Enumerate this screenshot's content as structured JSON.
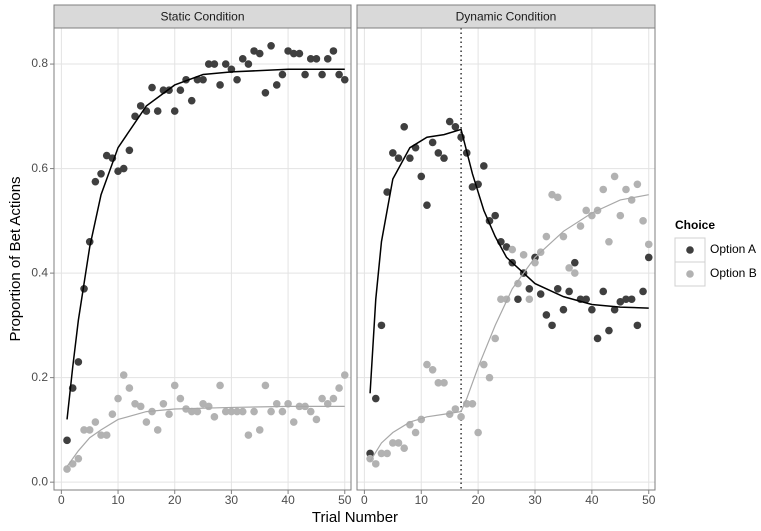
{
  "xlabel": "Trial Number",
  "ylabel": "Proportion of Bet Actions",
  "legend": {
    "title": "Choice",
    "position": "right"
  },
  "chart_data": [
    {
      "type": "scatter",
      "title": "Static Condition",
      "grid": true,
      "x": [
        1,
        2,
        3,
        4,
        5,
        6,
        7,
        8,
        9,
        10,
        11,
        12,
        13,
        14,
        15,
        16,
        17,
        18,
        19,
        20,
        21,
        22,
        23,
        24,
        25,
        26,
        27,
        28,
        29,
        30,
        31,
        32,
        33,
        34,
        35,
        36,
        37,
        38,
        39,
        40,
        41,
        42,
        43,
        44,
        45,
        46,
        47,
        48,
        49,
        50
      ],
      "xlim": [
        -1.3,
        51.1
      ],
      "xticks": [
        0,
        10,
        20,
        30,
        40,
        50
      ],
      "ylim": [
        -0.015,
        0.869
      ],
      "yticks": [
        {
          "value": 0,
          "label": "0.0"
        },
        {
          "value": 0.2,
          "label": "0.2"
        },
        {
          "value": 0.4,
          "label": "0.4"
        },
        {
          "value": 0.6,
          "label": "0.6"
        },
        {
          "value": 0.8,
          "label": "0.8"
        }
      ],
      "series": [
        {
          "name": "Option A",
          "color": "#3f3f3f",
          "fit_color": "#000000",
          "values": [
            0.08,
            0.18,
            0.23,
            0.37,
            0.46,
            0.575,
            0.59,
            0.625,
            0.62,
            0.595,
            0.6,
            0.635,
            0.7,
            0.72,
            0.71,
            0.755,
            0.71,
            0.75,
            0.75,
            0.71,
            0.75,
            0.77,
            0.73,
            0.77,
            0.77,
            0.8,
            0.8,
            0.76,
            0.8,
            0.79,
            0.77,
            0.81,
            0.8,
            0.825,
            0.82,
            0.745,
            0.835,
            0.76,
            0.78,
            0.825,
            0.82,
            0.82,
            0.78,
            0.81,
            0.81,
            0.78,
            0.81,
            0.825,
            0.78,
            0.77
          ],
          "fit": {
            "x": [
              1,
              2,
              3,
              5,
              7,
              10,
              15,
              20,
              25,
              30,
              40,
              50
            ],
            "values": [
              0.12,
              0.22,
              0.31,
              0.45,
              0.55,
              0.64,
              0.72,
              0.76,
              0.78,
              0.785,
              0.79,
              0.79
            ]
          }
        },
        {
          "name": "Option B",
          "color": "#b2b2b2",
          "fit_color": "#a8a8a8",
          "values": [
            0.025,
            0.035,
            0.045,
            0.1,
            0.1,
            0.115,
            0.09,
            0.09,
            0.13,
            0.16,
            0.205,
            0.18,
            0.15,
            0.145,
            0.115,
            0.135,
            0.1,
            0.15,
            0.13,
            0.185,
            0.16,
            0.14,
            0.135,
            0.135,
            0.15,
            0.145,
            0.125,
            0.185,
            0.135,
            0.135,
            0.135,
            0.135,
            0.09,
            0.135,
            0.1,
            0.185,
            0.135,
            0.15,
            0.135,
            0.15,
            0.115,
            0.145,
            0.145,
            0.135,
            0.12,
            0.16,
            0.15,
            0.16,
            0.18,
            0.205
          ],
          "fit": {
            "x": [
              1,
              3,
              5,
              7,
              10,
              15,
              20,
              30,
              40,
              50
            ],
            "values": [
              0.03,
              0.06,
              0.085,
              0.1,
              0.12,
              0.135,
              0.14,
              0.143,
              0.145,
              0.145
            ]
          }
        }
      ]
    },
    {
      "type": "scatter",
      "title": "Dynamic Condition",
      "grid": true,
      "vline": 17,
      "x": [
        1,
        2,
        3,
        4,
        5,
        6,
        7,
        8,
        9,
        10,
        11,
        12,
        13,
        14,
        15,
        16,
        17,
        18,
        19,
        20,
        21,
        22,
        23,
        24,
        25,
        26,
        27,
        28,
        29,
        30,
        31,
        32,
        33,
        34,
        35,
        36,
        37,
        38,
        39,
        40,
        41,
        42,
        43,
        44,
        45,
        46,
        47,
        48,
        49,
        50
      ],
      "xlim": [
        -1.3,
        51.1
      ],
      "xticks": [
        0,
        10,
        20,
        30,
        40,
        50
      ],
      "ylim": [
        -0.015,
        0.869
      ],
      "yticks": [
        {
          "value": 0,
          "label": "0.0"
        },
        {
          "value": 0.2,
          "label": "0.2"
        },
        {
          "value": 0.4,
          "label": "0.4"
        },
        {
          "value": 0.6,
          "label": "0.6"
        },
        {
          "value": 0.8,
          "label": "0.8"
        }
      ],
      "series": [
        {
          "name": "Option A",
          "color": "#3f3f3f",
          "fit_color": "#000000",
          "values": [
            0.055,
            0.16,
            0.3,
            0.555,
            0.63,
            0.62,
            0.68,
            0.62,
            0.64,
            0.585,
            0.53,
            0.65,
            0.63,
            0.62,
            0.69,
            0.68,
            0.66,
            0.63,
            0.565,
            0.57,
            0.605,
            0.5,
            0.51,
            0.46,
            0.45,
            0.42,
            0.35,
            0.4,
            0.37,
            0.43,
            0.36,
            0.32,
            0.3,
            0.37,
            0.33,
            0.365,
            0.42,
            0.35,
            0.35,
            0.33,
            0.275,
            0.365,
            0.29,
            0.33,
            0.345,
            0.35,
            0.35,
            0.3,
            0.365,
            0.43
          ],
          "fit": {
            "x": [
              1,
              2,
              3,
              5,
              8,
              11,
              14,
              17,
              19,
              21,
              23,
              25,
              30,
              35,
              40,
              45,
              50
            ],
            "values": [
              0.17,
              0.35,
              0.46,
              0.58,
              0.64,
              0.66,
              0.665,
              0.675,
              0.59,
              0.52,
              0.47,
              0.43,
              0.38,
              0.355,
              0.34,
              0.335,
              0.333
            ]
          }
        },
        {
          "name": "Option B",
          "color": "#b2b2b2",
          "fit_color": "#a8a8a8",
          "values": [
            0.045,
            0.035,
            0.055,
            0.055,
            0.075,
            0.075,
            0.065,
            0.11,
            0.095,
            0.12,
            0.225,
            0.215,
            0.19,
            0.19,
            0.13,
            0.14,
            0.125,
            0.15,
            0.15,
            0.095,
            0.225,
            0.2,
            0.275,
            0.35,
            0.35,
            0.445,
            0.38,
            0.435,
            0.35,
            0.42,
            0.44,
            0.47,
            0.55,
            0.545,
            0.47,
            0.41,
            0.4,
            0.49,
            0.52,
            0.51,
            0.52,
            0.56,
            0.46,
            0.585,
            0.51,
            0.56,
            0.54,
            0.57,
            0.5,
            0.455
          ],
          "fit": {
            "x": [
              1,
              3,
              5,
              8,
              11,
              14,
              17,
              18,
              20,
              23,
              26,
              30,
              35,
              40,
              45,
              50
            ],
            "values": [
              0.04,
              0.075,
              0.095,
              0.115,
              0.125,
              0.13,
              0.135,
              0.16,
              0.22,
              0.3,
              0.37,
              0.43,
              0.48,
              0.515,
              0.54,
              0.55
            ]
          }
        }
      ]
    }
  ]
}
